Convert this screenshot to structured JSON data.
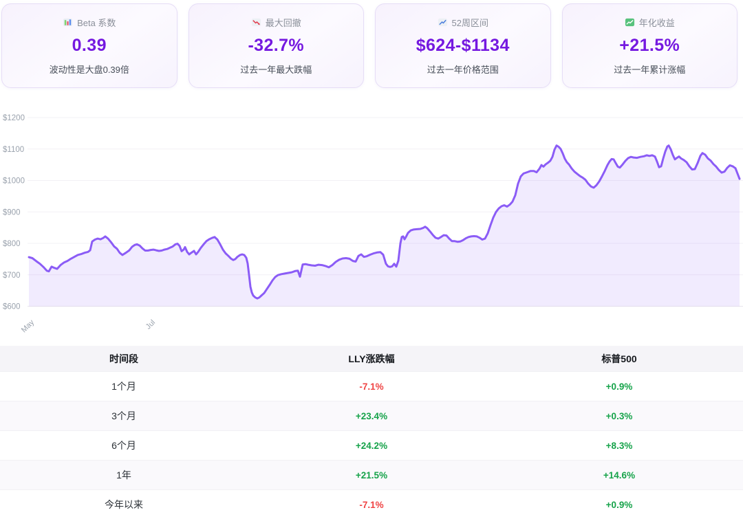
{
  "colors": {
    "accent_purple": "#7519e0",
    "chart_line": "#8b5cf6",
    "up_green": "#16a34a",
    "down_red": "#ef4444"
  },
  "cards": [
    {
      "icon": "bar-chart-icon",
      "title": "Beta 系数",
      "value": "0.39",
      "desc": "波动性是大盘0.39倍"
    },
    {
      "icon": "chart-decreasing-icon",
      "title": "最大回撤",
      "value": "-32.7%",
      "desc": "过去一年最大跌幅"
    },
    {
      "icon": "chart-increasing-icon",
      "title": "52周区间",
      "value": "$624-$1134",
      "desc": "过去一年价格范围"
    },
    {
      "icon": "chart-increasing-green-icon",
      "title": "年化收益",
      "value": "+21.5%",
      "desc": "过去一年累计涨幅"
    }
  ],
  "chart_data": {
    "type": "area",
    "title": "",
    "xlabel": "",
    "ylabel": "",
    "ylim": [
      600,
      1200
    ],
    "grid": true,
    "legend": false,
    "line_color": "#8b5cf6",
    "fill_color": "rgba(139,92,246,0.12)",
    "y_ticks": [
      {
        "label": "$600",
        "value": 600
      },
      {
        "label": "$700",
        "value": 700
      },
      {
        "label": "$800",
        "value": 800
      },
      {
        "label": "$900",
        "value": 900
      },
      {
        "label": "$1000",
        "value": 1000
      },
      {
        "label": "$1100",
        "value": 1100
      },
      {
        "label": "$1200",
        "value": 1200
      }
    ],
    "x_ticks": [
      {
        "label": "May",
        "x": 42
      },
      {
        "label": "Jul",
        "x": 218
      }
    ],
    "points": [
      [
        42,
        756
      ],
      [
        47,
        753
      ],
      [
        53,
        743
      ],
      [
        58,
        735
      ],
      [
        63,
        725
      ],
      [
        68,
        713
      ],
      [
        71,
        711
      ],
      [
        75,
        726
      ],
      [
        79,
        722
      ],
      [
        83,
        719
      ],
      [
        88,
        731
      ],
      [
        93,
        739
      ],
      [
        98,
        744
      ],
      [
        103,
        751
      ],
      [
        108,
        757
      ],
      [
        113,
        763
      ],
      [
        118,
        766
      ],
      [
        123,
        770
      ],
      [
        128,
        773
      ],
      [
        131,
        778
      ],
      [
        134,
        806
      ],
      [
        138,
        812
      ],
      [
        142,
        815
      ],
      [
        146,
        813
      ],
      [
        150,
        817
      ],
      [
        153,
        822
      ],
      [
        157,
        815
      ],
      [
        162,
        802
      ],
      [
        166,
        790
      ],
      [
        170,
        783
      ],
      [
        174,
        770
      ],
      [
        178,
        763
      ],
      [
        183,
        770
      ],
      [
        188,
        778
      ],
      [
        192,
        789
      ],
      [
        196,
        795
      ],
      [
        199,
        797
      ],
      [
        203,
        793
      ],
      [
        207,
        784
      ],
      [
        211,
        777
      ],
      [
        215,
        777
      ],
      [
        219,
        779
      ],
      [
        223,
        780
      ],
      [
        227,
        778
      ],
      [
        231,
        776
      ],
      [
        235,
        777
      ],
      [
        239,
        780
      ],
      [
        243,
        782
      ],
      [
        247,
        786
      ],
      [
        251,
        790
      ],
      [
        255,
        797
      ],
      [
        258,
        799
      ],
      [
        261,
        792
      ],
      [
        264,
        775
      ],
      [
        267,
        780
      ],
      [
        269,
        788
      ],
      [
        272,
        773
      ],
      [
        275,
        765
      ],
      [
        278,
        770
      ],
      [
        282,
        776
      ],
      [
        285,
        765
      ],
      [
        288,
        773
      ],
      [
        292,
        786
      ],
      [
        296,
        797
      ],
      [
        300,
        807
      ],
      [
        304,
        813
      ],
      [
        308,
        817
      ],
      [
        312,
        820
      ],
      [
        316,
        812
      ],
      [
        320,
        797
      ],
      [
        324,
        780
      ],
      [
        328,
        768
      ],
      [
        332,
        760
      ],
      [
        336,
        751
      ],
      [
        339,
        747
      ],
      [
        342,
        750
      ],
      [
        345,
        757
      ],
      [
        349,
        763
      ],
      [
        352,
        765
      ],
      [
        355,
        763
      ],
      [
        358,
        754
      ],
      [
        360,
        736
      ],
      [
        362,
        700
      ],
      [
        364,
        662
      ],
      [
        366,
        644
      ],
      [
        368,
        634
      ],
      [
        371,
        628
      ],
      [
        374,
        625
      ],
      [
        377,
        628
      ],
      [
        380,
        634
      ],
      [
        384,
        642
      ],
      [
        388,
        655
      ],
      [
        392,
        668
      ],
      [
        396,
        682
      ],
      [
        400,
        693
      ],
      [
        404,
        699
      ],
      [
        409,
        702
      ],
      [
        414,
        704
      ],
      [
        419,
        706
      ],
      [
        424,
        708
      ],
      [
        429,
        712
      ],
      [
        433,
        713
      ],
      [
        436,
        694
      ],
      [
        440,
        733
      ],
      [
        444,
        734
      ],
      [
        448,
        732
      ],
      [
        453,
        730
      ],
      [
        458,
        729
      ],
      [
        463,
        732
      ],
      [
        468,
        731
      ],
      [
        473,
        728
      ],
      [
        478,
        724
      ],
      [
        483,
        731
      ],
      [
        488,
        741
      ],
      [
        493,
        748
      ],
      [
        498,
        752
      ],
      [
        503,
        753
      ],
      [
        508,
        751
      ],
      [
        513,
        744
      ],
      [
        517,
        742
      ],
      [
        521,
        760
      ],
      [
        525,
        765
      ],
      [
        529,
        757
      ],
      [
        533,
        759
      ],
      [
        538,
        764
      ],
      [
        543,
        768
      ],
      [
        548,
        771
      ],
      [
        553,
        772
      ],
      [
        557,
        764
      ],
      [
        561,
        735
      ],
      [
        564,
        727
      ],
      [
        567,
        725
      ],
      [
        570,
        727
      ],
      [
        573,
        735
      ],
      [
        576,
        726
      ],
      [
        579,
        745
      ],
      [
        582,
        800
      ],
      [
        584,
        820
      ],
      [
        586,
        822
      ],
      [
        588,
        813
      ],
      [
        590,
        820
      ],
      [
        593,
        833
      ],
      [
        597,
        841
      ],
      [
        601,
        844
      ],
      [
        606,
        845
      ],
      [
        611,
        846
      ],
      [
        615,
        849
      ],
      [
        618,
        853
      ],
      [
        621,
        848
      ],
      [
        625,
        838
      ],
      [
        629,
        827
      ],
      [
        633,
        818
      ],
      [
        637,
        815
      ],
      [
        641,
        820
      ],
      [
        645,
        826
      ],
      [
        649,
        825
      ],
      [
        653,
        815
      ],
      [
        657,
        807
      ],
      [
        661,
        807
      ],
      [
        665,
        805
      ],
      [
        669,
        806
      ],
      [
        673,
        810
      ],
      [
        677,
        816
      ],
      [
        681,
        820
      ],
      [
        685,
        822
      ],
      [
        689,
        823
      ],
      [
        693,
        822
      ],
      [
        697,
        818
      ],
      [
        701,
        812
      ],
      [
        705,
        815
      ],
      [
        709,
        832
      ],
      [
        713,
        858
      ],
      [
        717,
        882
      ],
      [
        721,
        900
      ],
      [
        725,
        911
      ],
      [
        729,
        918
      ],
      [
        733,
        921
      ],
      [
        737,
        917
      ],
      [
        741,
        923
      ],
      [
        745,
        933
      ],
      [
        749,
        953
      ],
      [
        753,
        990
      ],
      [
        757,
        1013
      ],
      [
        761,
        1022
      ],
      [
        766,
        1026
      ],
      [
        771,
        1030
      ],
      [
        776,
        1030
      ],
      [
        780,
        1026
      ],
      [
        784,
        1037
      ],
      [
        787,
        1049
      ],
      [
        790,
        1044
      ],
      [
        793,
        1051
      ],
      [
        797,
        1057
      ],
      [
        800,
        1063
      ],
      [
        803,
        1075
      ],
      [
        806,
        1098
      ],
      [
        809,
        1111
      ],
      [
        812,
        1107
      ],
      [
        815,
        1100
      ],
      [
        818,
        1086
      ],
      [
        821,
        1069
      ],
      [
        824,
        1058
      ],
      [
        827,
        1051
      ],
      [
        831,
        1038
      ],
      [
        835,
        1028
      ],
      [
        839,
        1021
      ],
      [
        843,
        1014
      ],
      [
        847,
        1009
      ],
      [
        851,
        1002
      ],
      [
        855,
        990
      ],
      [
        859,
        981
      ],
      [
        863,
        977
      ],
      [
        867,
        985
      ],
      [
        871,
        997
      ],
      [
        875,
        1013
      ],
      [
        879,
        1030
      ],
      [
        883,
        1049
      ],
      [
        886,
        1060
      ],
      [
        889,
        1068
      ],
      [
        892,
        1067
      ],
      [
        895,
        1055
      ],
      [
        898,
        1044
      ],
      [
        901,
        1041
      ],
      [
        905,
        1051
      ],
      [
        909,
        1062
      ],
      [
        913,
        1071
      ],
      [
        917,
        1075
      ],
      [
        921,
        1073
      ],
      [
        926,
        1072
      ],
      [
        931,
        1075
      ],
      [
        936,
        1077
      ],
      [
        940,
        1080
      ],
      [
        944,
        1078
      ],
      [
        948,
        1080
      ],
      [
        952,
        1076
      ],
      [
        955,
        1060
      ],
      [
        958,
        1042
      ],
      [
        961,
        1045
      ],
      [
        964,
        1070
      ],
      [
        967,
        1092
      ],
      [
        970,
        1108
      ],
      [
        972,
        1111
      ],
      [
        975,
        1099
      ],
      [
        978,
        1081
      ],
      [
        981,
        1067
      ],
      [
        984,
        1072
      ],
      [
        987,
        1076
      ],
      [
        990,
        1070
      ],
      [
        994,
        1065
      ],
      [
        998,
        1058
      ],
      [
        1002,
        1045
      ],
      [
        1006,
        1035
      ],
      [
        1010,
        1036
      ],
      [
        1014,
        1055
      ],
      [
        1018,
        1078
      ],
      [
        1021,
        1087
      ],
      [
        1025,
        1082
      ],
      [
        1029,
        1070
      ],
      [
        1033,
        1063
      ],
      [
        1037,
        1052
      ],
      [
        1041,
        1044
      ],
      [
        1045,
        1033
      ],
      [
        1049,
        1025
      ],
      [
        1053,
        1028
      ],
      [
        1057,
        1040
      ],
      [
        1061,
        1048
      ],
      [
        1065,
        1045
      ],
      [
        1069,
        1039
      ],
      [
        1072,
        1022
      ],
      [
        1075,
        1005
      ]
    ]
  },
  "table": {
    "headers": [
      "时间段",
      "LLY涨跌幅",
      "标普500"
    ],
    "rows": [
      {
        "period": "1个月",
        "lly": {
          "text": "-7.1%",
          "dir": "down"
        },
        "sp": {
          "text": "+0.9%",
          "dir": "up"
        }
      },
      {
        "period": "3个月",
        "lly": {
          "text": "+23.4%",
          "dir": "up"
        },
        "sp": {
          "text": "+0.3%",
          "dir": "up"
        }
      },
      {
        "period": "6个月",
        "lly": {
          "text": "+24.2%",
          "dir": "up"
        },
        "sp": {
          "text": "+8.3%",
          "dir": "up"
        }
      },
      {
        "period": "1年",
        "lly": {
          "text": "+21.5%",
          "dir": "up"
        },
        "sp": {
          "text": "+14.6%",
          "dir": "up"
        }
      },
      {
        "period": "今年以来",
        "lly": {
          "text": "-7.1%",
          "dir": "down"
        },
        "sp": {
          "text": "+0.9%",
          "dir": "up"
        }
      }
    ]
  }
}
